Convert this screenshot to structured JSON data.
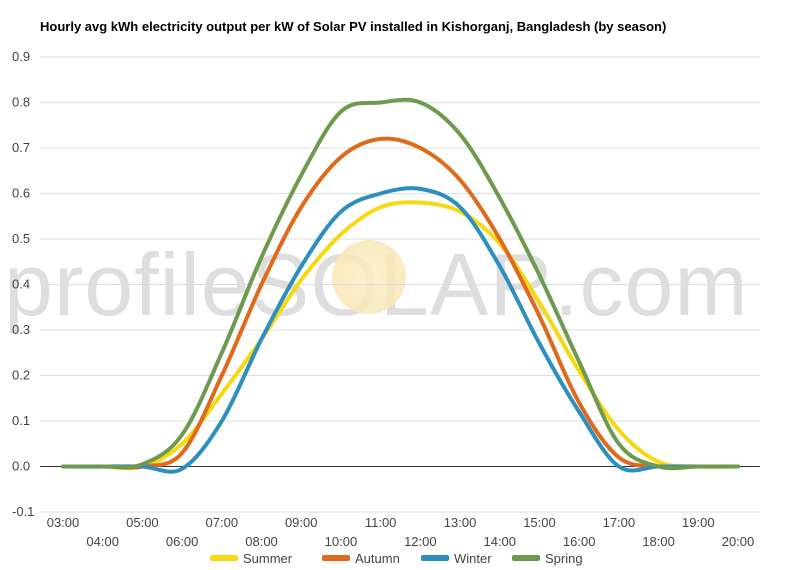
{
  "chart_data": {
    "type": "line",
    "title": "Hourly avg kWh electricity output per kW of Solar PV installed in Kishorganj, Bangladesh (by season)",
    "watermark": "profileSOLAR.com",
    "x": [
      "03:00",
      "04:00",
      "05:00",
      "06:00",
      "07:00",
      "08:00",
      "09:00",
      "10:00",
      "11:00",
      "12:00",
      "13:00",
      "14:00",
      "15:00",
      "16:00",
      "17:00",
      "18:00",
      "19:00",
      "20:00"
    ],
    "ylim": [
      -0.1,
      0.9
    ],
    "yticks": [
      "0.9",
      "0.8",
      "0.7",
      "0.6",
      "0.5",
      "0.4",
      "0.3",
      "0.2",
      "0.1",
      "0.0",
      "-0.1"
    ],
    "grid": true,
    "legend_position": "bottom",
    "series": [
      {
        "name": "Summer",
        "color": "#f6d90f",
        "values": [
          0.0,
          0.0,
          0.0,
          0.05,
          0.16,
          0.28,
          0.41,
          0.51,
          0.57,
          0.58,
          0.56,
          0.49,
          0.36,
          0.21,
          0.08,
          0.01,
          0.0,
          0.0
        ]
      },
      {
        "name": "Autumn",
        "color": "#e06a1b",
        "values": [
          0.0,
          0.0,
          0.0,
          0.03,
          0.2,
          0.4,
          0.57,
          0.68,
          0.72,
          0.7,
          0.63,
          0.5,
          0.33,
          0.14,
          0.02,
          0.0,
          0.0,
          0.0
        ]
      },
      {
        "name": "Winter",
        "color": "#2c8fc0",
        "values": [
          0.0,
          0.0,
          0.0,
          -0.005,
          0.1,
          0.28,
          0.44,
          0.56,
          0.6,
          0.61,
          0.57,
          0.44,
          0.27,
          0.12,
          0.0,
          0.0,
          0.0,
          0.0
        ]
      },
      {
        "name": "Spring",
        "color": "#6e9a50",
        "values": [
          0.0,
          0.0,
          0.005,
          0.07,
          0.25,
          0.46,
          0.64,
          0.78,
          0.8,
          0.8,
          0.73,
          0.59,
          0.42,
          0.23,
          0.05,
          0.0,
          0.0,
          0.0
        ]
      }
    ]
  }
}
